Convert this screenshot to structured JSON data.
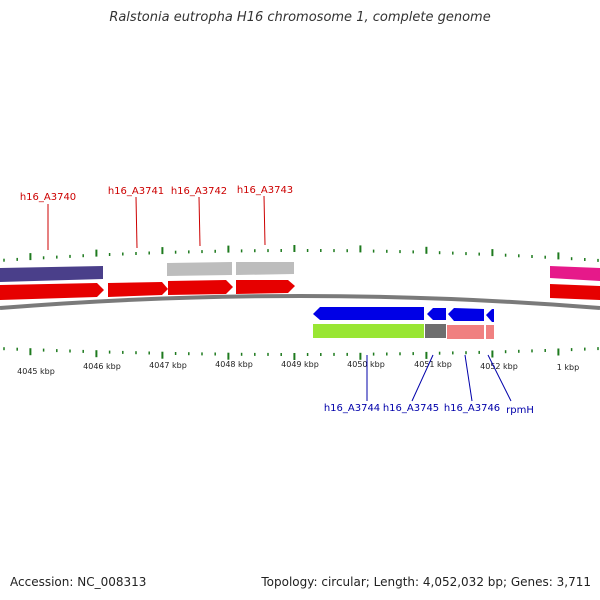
{
  "title": "Ralstonia eutropha H16 chromosome 1, complete genome",
  "footer": {
    "accession": "Accession: NC_008313",
    "stats": "Topology: circular; Length: 4,052,032 bp; Genes: 3,711"
  },
  "colors": {
    "forward_label": "#cc0000",
    "reverse_label": "#0000aa",
    "tick": "#1e7a1e",
    "backbone": "#7a7a7a"
  },
  "scale_labels": [
    "4045 kbp",
    "4046 kbp",
    "4047 kbp",
    "4048 kbp",
    "4049 kbp",
    "4050 kbp",
    "4051 kbp",
    "4052 kbp",
    "1 kbp"
  ],
  "forward_genes": [
    {
      "label": "h16_A3740"
    },
    {
      "label": "h16_A3741"
    },
    {
      "label": "h16_A3742"
    },
    {
      "label": "h16_A3743"
    }
  ],
  "reverse_genes": [
    {
      "label": "h16_A3744"
    },
    {
      "label": "h16_A3745"
    },
    {
      "label": "h16_A3746"
    },
    {
      "label": "rpmH"
    }
  ]
}
